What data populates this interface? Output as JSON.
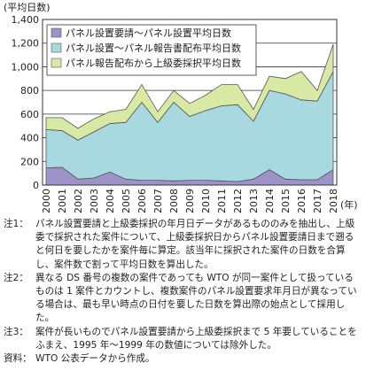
{
  "chart_data": {
    "type": "stacked-area",
    "y_label": "(平均日数)",
    "x_label": "(年)",
    "categories": [
      "2000",
      "2001",
      "2002",
      "2003",
      "2004",
      "2005",
      "2006",
      "2007",
      "2008",
      "2009",
      "2010",
      "2011",
      "2012",
      "2013",
      "2014",
      "2015",
      "2016",
      "2017",
      "2018"
    ],
    "series": [
      {
        "name": "パネル設置要請～パネル設置平均日数",
        "color": "#9e93c8",
        "values": [
          145,
          150,
          50,
          60,
          110,
          50,
          40,
          40,
          35,
          40,
          40,
          35,
          30,
          50,
          130,
          50,
          45,
          45,
          130
        ]
      },
      {
        "name": "パネル設置～パネル報告書配布平均日数",
        "color": "#a9d9e0",
        "values": [
          325,
          310,
          330,
          390,
          410,
          480,
          660,
          490,
          665,
          540,
          590,
          635,
          650,
          490,
          670,
          720,
          675,
          665,
          830
        ]
      },
      {
        "name": "パネル報告配布から上級委採択平均日数",
        "color": "#d8e9a3",
        "values": [
          100,
          110,
          100,
          110,
          100,
          110,
          150,
          90,
          100,
          110,
          130,
          180,
          170,
          100,
          120,
          130,
          240,
          90,
          230
        ]
      }
    ],
    "ylim": [
      0,
      1400
    ],
    "yticks": [
      0,
      200,
      400,
      600,
      800,
      {
        "value": 1000,
        "label": "1,000"
      },
      {
        "value": 1200,
        "label": "1,200"
      },
      {
        "value": 1400,
        "label": "1,400"
      }
    ],
    "grid": true,
    "legend": "top-left"
  },
  "notes": [
    {
      "label": "注1：",
      "text": "パネル設置要請と上級委採択の年月日データがあるもののみを抽出し、上級委で採択された案件について、上級委採択日からパネル設置要請日まで遡ると何日を要したかを案件毎に算定。該当年に採択された案件の日数を合算し、案件数で割って平均日数を算出した。"
    },
    {
      "label": "注2：",
      "text": "異なる DS 番号の複数の案件であっても WTO が同一案件として扱っているものは 1 案件とカウントし、複数案件のパネル設置要求年月日が異なっている場合は、最も早い時点の日付を要した日数を算出際の始点として採用した。"
    },
    {
      "label": "注3：",
      "text": "案件が長いものでパネル設置要請から上級委採択まで 5 年要していることをふまえ、1995 年～1999 年の数値については除外した。"
    },
    {
      "label": "資料：",
      "text": "WTO 公表データから作成。"
    }
  ]
}
